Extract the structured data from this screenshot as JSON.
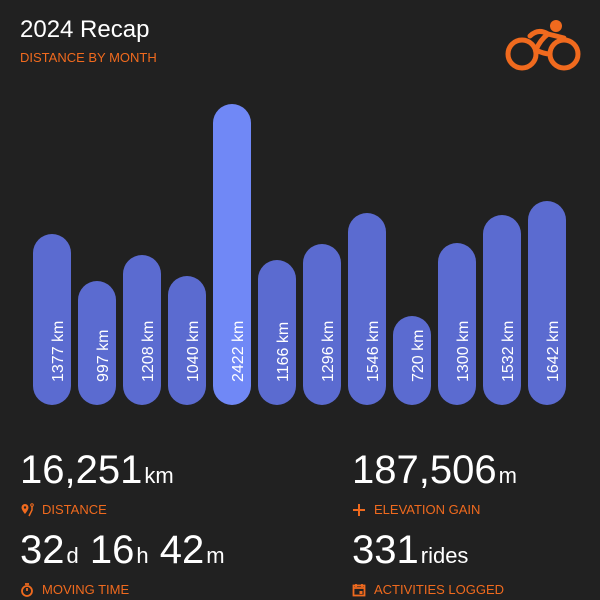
{
  "header": {
    "title": "2024 Recap",
    "subtitle": "DISTANCE BY MONTH",
    "logo": "cyclist-logo"
  },
  "colors": {
    "accent": "#f06a1e",
    "bar": "#5b6bd0",
    "bar_max": "#7088f6",
    "background": "#212121"
  },
  "chart_data": {
    "type": "bar",
    "unit": "km",
    "values": [
      1377,
      997,
      1208,
      1040,
      2422,
      1166,
      1296,
      1546,
      720,
      1300,
      1532,
      1642
    ],
    "labels": [
      "1377 km",
      "997 km",
      "1208 km",
      "1040 km",
      "2422 km",
      "1166 km",
      "1296 km",
      "1546 km",
      "720 km",
      "1300 km",
      "1532 km",
      "1642 km"
    ]
  },
  "stats": [
    {
      "parts": [
        [
          "16,251",
          "km"
        ]
      ],
      "label": "DISTANCE",
      "icon": "route-pin-icon"
    },
    {
      "parts": [
        [
          "187,506",
          "m"
        ]
      ],
      "label": "ELEVATION GAIN",
      "icon": "plus-icon"
    },
    {
      "parts": [
        [
          "32",
          "d"
        ],
        [
          "16",
          "h"
        ],
        [
          "42",
          "m"
        ]
      ],
      "label": "MOVING TIME",
      "icon": "stopwatch-icon"
    },
    {
      "parts": [
        [
          "331",
          "rides"
        ]
      ],
      "label": "ACTIVITIES LOGGED",
      "icon": "calendar-icon"
    }
  ]
}
